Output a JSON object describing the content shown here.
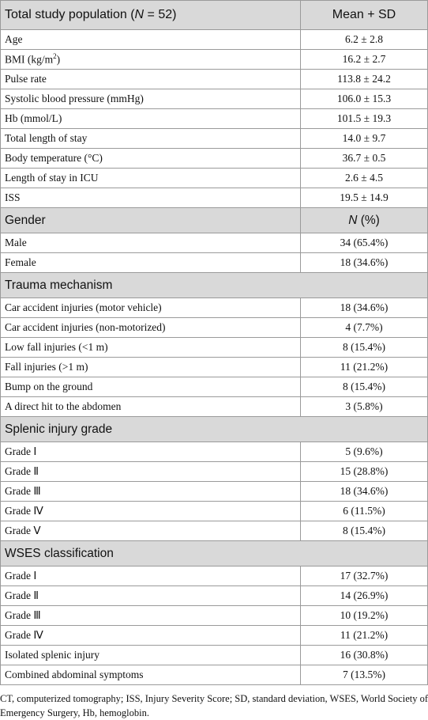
{
  "table": {
    "columns": [
      [
        "Total study population (",
        "N",
        " = 52)"
      ],
      "Mean + SD"
    ],
    "sections": [
      {
        "rows": [
          [
            "Age",
            "6.2 ± 2.8"
          ],
          [
            [
              "BMI (kg/m",
              "2",
              ")"
            ],
            "16.2 ± 2.7"
          ],
          [
            "Pulse rate",
            "113.8 ± 24.2"
          ],
          [
            "Systolic blood pressure (mmHg)",
            "106.0 ± 15.3"
          ],
          [
            "Hb (mmol/L)",
            "101.5 ± 19.3"
          ],
          [
            "Total length of stay",
            "14.0 ± 9.7"
          ],
          [
            "Body temperature (°C)",
            "36.7 ± 0.5"
          ],
          [
            "Length of stay in ICU",
            "2.6 ± 4.5"
          ],
          [
            "ISS",
            "19.5 ± 14.9"
          ]
        ]
      },
      {
        "title": "Gender",
        "value": [
          "N",
          " (%)"
        ],
        "rows": [
          [
            "Male",
            "34 (65.4%)"
          ],
          [
            "Female",
            "18 (34.6%)"
          ]
        ]
      },
      {
        "title": "Trauma mechanism",
        "rows": [
          [
            "Car accident injuries (motor vehicle)",
            "18 (34.6%)"
          ],
          [
            "Car accident injuries (non-motorized)",
            "4 (7.7%)"
          ],
          [
            "Low fall injuries (<1 m)",
            "8 (15.4%)"
          ],
          [
            "Fall injuries (>1 m)",
            "11 (21.2%)"
          ],
          [
            "Bump on the ground",
            "8 (15.4%)"
          ],
          [
            "A direct hit to the abdomen",
            "3 (5.8%)"
          ]
        ]
      },
      {
        "title": "Splenic injury grade",
        "rows": [
          [
            "Grade Ⅰ",
            "5 (9.6%)"
          ],
          [
            "Grade Ⅱ",
            "15 (28.8%)"
          ],
          [
            "Grade Ⅲ",
            "18 (34.6%)"
          ],
          [
            "Grade Ⅳ",
            "6 (11.5%)"
          ],
          [
            "Grade Ⅴ",
            "8 (15.4%)"
          ]
        ]
      },
      {
        "title": "WSES classification",
        "rows": [
          [
            "Grade Ⅰ",
            "17 (32.7%)"
          ],
          [
            "Grade Ⅱ",
            "14 (26.9%)"
          ],
          [
            "Grade Ⅲ",
            "10 (19.2%)"
          ],
          [
            "Grade Ⅳ",
            "11 (21.2%)"
          ],
          [
            "Isolated splenic injury",
            "16 (30.8%)"
          ],
          [
            "Combined abdominal symptoms",
            "7 (13.5%)"
          ]
        ]
      }
    ]
  },
  "footnote": "CT, computerized tomography; ISS, Injury Severity Score; SD, standard deviation, WSES, World Society of Emergency Surgery, Hb, hemoglobin."
}
